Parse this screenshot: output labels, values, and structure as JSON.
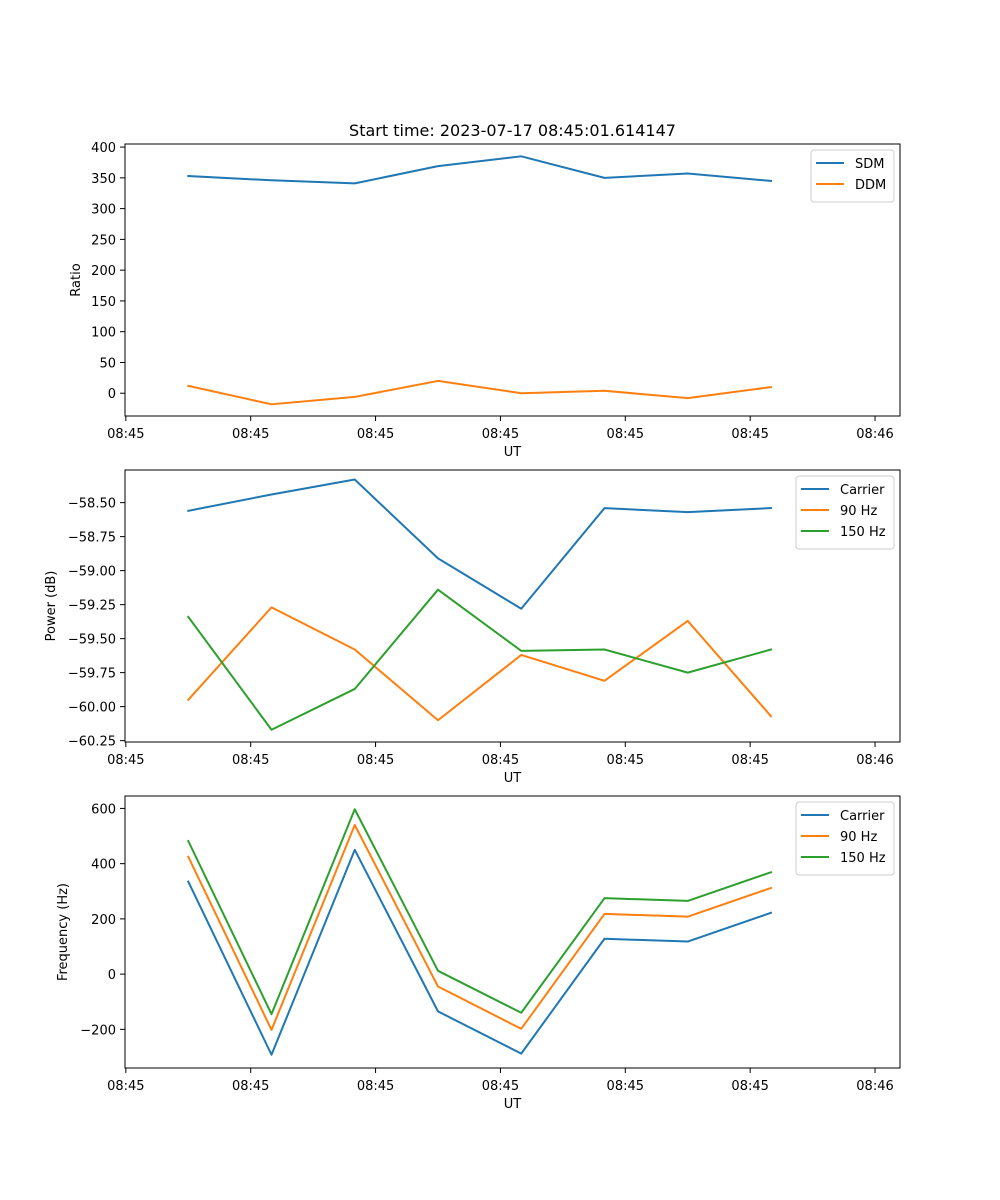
{
  "figure_title": "Start time: 2023-07-17 08:45:01.614147",
  "colors": {
    "blue": "#1f77b4",
    "orange": "#ff7f0e",
    "green": "#2ca02c",
    "legend_edge": "#cccccc"
  },
  "chart_data": [
    {
      "type": "line",
      "title": "Start time: 2023-07-17 08:45:01.614147",
      "xlabel": "UT",
      "ylabel": "Ratio",
      "x_tick_labels": [
        "08:45",
        "08:45",
        "08:45",
        "08:45",
        "08:45",
        "08:45",
        "08:46"
      ],
      "x": [
        1,
        2,
        3,
        4,
        5,
        6,
        7,
        8
      ],
      "xlim": [
        0.24,
        9.55
      ],
      "ylim": [
        -37,
        405
      ],
      "y_ticks": [
        0,
        50,
        100,
        150,
        200,
        250,
        300,
        350,
        400
      ],
      "y_tick_labels": [
        "0",
        "50",
        "100",
        "150",
        "200",
        "250",
        "300",
        "350",
        "400"
      ],
      "legend": "top-right",
      "series": [
        {
          "name": "SDM",
          "color": "#1f77b4",
          "values": [
            353,
            346,
            341,
            369,
            385,
            350,
            357,
            345
          ]
        },
        {
          "name": "DDM",
          "color": "#ff7f0e",
          "values": [
            12,
            -18,
            -6,
            20,
            0,
            4,
            -8,
            10
          ]
        }
      ]
    },
    {
      "type": "line",
      "title": "",
      "xlabel": "UT",
      "ylabel": "Power (dB)",
      "x_tick_labels": [
        "08:45",
        "08:45",
        "08:45",
        "08:45",
        "08:45",
        "08:45",
        "08:46"
      ],
      "x": [
        1,
        2,
        3,
        4,
        5,
        6,
        7,
        8
      ],
      "xlim": [
        0.24,
        9.55
      ],
      "ylim": [
        -60.26,
        -58.26
      ],
      "y_ticks": [
        -60.25,
        -60.0,
        -59.75,
        -59.5,
        -59.25,
        -59.0,
        -58.75,
        -58.5
      ],
      "y_tick_labels": [
        "−60.25",
        "−60.00",
        "−59.75",
        "−59.50",
        "−59.25",
        "−59.00",
        "−58.75",
        "−58.50"
      ],
      "legend": "top-right",
      "series": [
        {
          "name": "Carrier",
          "color": "#1f77b4",
          "values": [
            -58.56,
            -58.44,
            -58.33,
            -58.91,
            -59.28,
            -58.54,
            -58.57,
            -58.54
          ]
        },
        {
          "name": "90 Hz",
          "color": "#ff7f0e",
          "values": [
            -59.95,
            -59.27,
            -59.58,
            -60.1,
            -59.62,
            -59.81,
            -59.37,
            -60.07
          ]
        },
        {
          "name": "150 Hz",
          "color": "#2ca02c",
          "values": [
            -59.34,
            -60.17,
            -59.87,
            -59.14,
            -59.59,
            -59.58,
            -59.75,
            -59.58
          ]
        }
      ]
    },
    {
      "type": "line",
      "title": "",
      "xlabel": "UT",
      "ylabel": "Frequency (Hz)",
      "x_tick_labels": [
        "08:45",
        "08:45",
        "08:45",
        "08:45",
        "08:45",
        "08:45",
        "08:46"
      ],
      "x": [
        1,
        2,
        3,
        4,
        5,
        6,
        7,
        8
      ],
      "xlim": [
        0.24,
        9.55
      ],
      "ylim": [
        -340,
        645
      ],
      "y_ticks": [
        -200,
        0,
        200,
        400,
        600
      ],
      "y_tick_labels": [
        "−200",
        "0",
        "200",
        "400",
        "600"
      ],
      "legend": "top-right",
      "series": [
        {
          "name": "Carrier",
          "color": "#1f77b4",
          "values": [
            335,
            -292,
            450,
            -135,
            -288,
            128,
            118,
            222
          ]
        },
        {
          "name": "90 Hz",
          "color": "#ff7f0e",
          "values": [
            425,
            -202,
            540,
            -45,
            -198,
            218,
            208,
            312
          ]
        },
        {
          "name": "150 Hz",
          "color": "#2ca02c",
          "values": [
            482,
            -145,
            597,
            12,
            -140,
            275,
            265,
            369
          ]
        }
      ]
    }
  ]
}
